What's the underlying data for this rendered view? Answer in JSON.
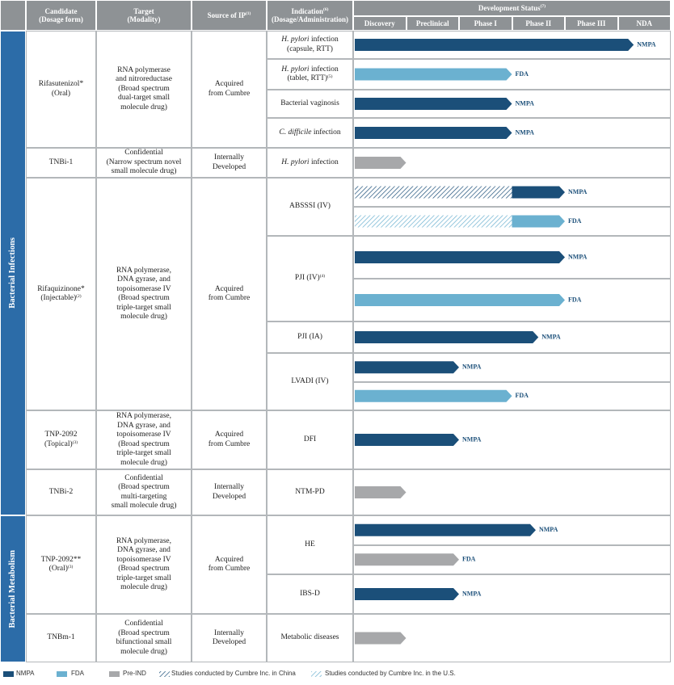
{
  "header": {
    "candidate": [
      "Candidate",
      "(Dosage form)"
    ],
    "target": [
      "Target",
      "(Modality)"
    ],
    "source": [
      {
        "text": "Source of IP",
        "sup": "(1)"
      }
    ],
    "indication": [
      {
        "text": "Indication",
        "sup": "(6)"
      },
      "(Dosage/Administration)"
    ],
    "status": [
      {
        "text": "Development Status",
        "sup": "(7)"
      }
    ],
    "phases": [
      "Discovery",
      "Preclinical",
      "Phase I",
      "Phase II",
      "Phase III",
      "NDA"
    ]
  },
  "colors": {
    "nmpa": "#1b4f79",
    "fda": "#6bb1d0",
    "preind": "#a7a8aa"
  },
  "areas": [
    "Bacterial Infections",
    "Bacterial Metabolism"
  ],
  "candidates": [
    {
      "name": [
        "Rifasutenizol*",
        "(Oral)"
      ],
      "target": [
        "RNA polymerase",
        "and nitroreductase",
        "(Broad spectrum",
        "dual-target small",
        "molecule drug)"
      ],
      "source": [
        "Acquired",
        "from Cumbre"
      ],
      "indications": [
        {
          "label": [
            {
              "italic": "H. pylori",
              "text": " infection"
            },
            "(capsule, RTT)"
          ],
          "bars": [
            {
              "kind": "nmpa",
              "label": "NMPA",
              "end": 5.3
            }
          ]
        },
        {
          "label": [
            {
              "italic": "H. pylori",
              "text": " infection"
            },
            {
              "text": "(tablet, RTT)",
              "sup": "(5)"
            }
          ],
          "bars": [
            {
              "kind": "fda",
              "label": "FDA",
              "end": 3
            }
          ]
        },
        {
          "label": [
            "Bacterial vaginosis"
          ],
          "bars": [
            {
              "kind": "nmpa",
              "label": "NMPA",
              "end": 3
            }
          ]
        },
        {
          "label": [
            {
              "italic": "C. difficile",
              "text": " infection"
            }
          ],
          "bars": [
            {
              "kind": "nmpa",
              "label": "NMPA",
              "end": 3
            }
          ]
        }
      ]
    },
    {
      "name": [
        "TNBi-1"
      ],
      "target": [
        "Confidential",
        "(Narrow spectrum novel",
        "small molecule drug)"
      ],
      "source": [
        "Internally",
        "Developed"
      ],
      "indications": [
        {
          "label": [
            {
              "italic": "H. pylori",
              "text": " infection"
            }
          ],
          "bars": [
            {
              "kind": "preind",
              "end": 1
            }
          ]
        }
      ]
    },
    {
      "name": [
        "Rifaquizinone*",
        {
          "text": "(Injectable)",
          "sup": "(2)"
        }
      ],
      "target": [
        "RNA polymerase,",
        "DNA gyrase, and",
        "topoisomerase IV",
        "(Broad spectrum",
        "triple-target small",
        "molecule drug)"
      ],
      "source": [
        "Acquired",
        "from Cumbre"
      ],
      "indications": [
        {
          "label": [
            "ABSSSI (IV)"
          ],
          "bars": [
            {
              "kind": "nmpa",
              "label": "NMPA",
              "end": 4,
              "hatch_end": 3
            },
            {
              "kind": "fda",
              "label": "FDA",
              "end": 4,
              "hatch_end": 3
            }
          ]
        },
        {
          "label": [
            {
              "text": "PJI (IV)",
              "sup": "(4)"
            }
          ],
          "bars": [
            {
              "kind": "nmpa",
              "label": "NMPA",
              "end": 4
            },
            {
              "kind": "fda",
              "label": "FDA",
              "end": 4
            }
          ]
        },
        {
          "label": [
            "PJI (IA)"
          ],
          "bars": [
            {
              "kind": "nmpa",
              "label": "NMPA",
              "end": 3.5
            }
          ]
        },
        {
          "label": [
            "LVADI (IV)"
          ],
          "bars": [
            {
              "kind": "nmpa",
              "label": "NMPA",
              "end": 2
            },
            {
              "kind": "fda",
              "label": "FDA",
              "end": 3
            }
          ]
        }
      ]
    },
    {
      "name": [
        "TNP-2092",
        {
          "text": "(Topical)",
          "sup": "(3)"
        }
      ],
      "target": [
        "RNA polymerase,",
        "DNA gyrase, and",
        "topoisomerase IV",
        "(Broad spectrum",
        "triple-target small",
        "molecule drug)"
      ],
      "source": [
        "Acquired",
        "from Cumbre"
      ],
      "indications": [
        {
          "label": [
            "DFI"
          ],
          "bars": [
            {
              "kind": "nmpa",
              "label": "NMPA",
              "end": 2
            }
          ]
        }
      ]
    },
    {
      "name": [
        "TNBi-2"
      ],
      "target": [
        "Confidential",
        "(Broad spectrum",
        "multi-targeting",
        "small molecule drug)"
      ],
      "source": [
        "Internally",
        "Developed"
      ],
      "indications": [
        {
          "label": [
            "NTM-PD"
          ],
          "bars": [
            {
              "kind": "preind",
              "end": 1
            }
          ]
        }
      ]
    },
    {
      "name": [
        "TNP-2092**",
        {
          "text": "(Oral)",
          "sup": "(3)"
        }
      ],
      "target": [
        "RNA polymerase,",
        "DNA gyrase, and",
        "topoisomerase IV",
        "(Broad spectrum",
        "triple-target small",
        "molecule drug)"
      ],
      "source": [
        "Acquired",
        "from Cumbre"
      ],
      "indications": [
        {
          "label": [
            "HE"
          ],
          "bars": [
            {
              "kind": "nmpa",
              "label": "NMPA",
              "end": 3.45
            },
            {
              "kind": "preind",
              "label": "FDA",
              "end": 2
            }
          ]
        },
        {
          "label": [
            "IBS-D"
          ],
          "bars": [
            {
              "kind": "nmpa",
              "label": "NMPA",
              "end": 2
            }
          ]
        }
      ]
    },
    {
      "name": [
        "TNBm-1"
      ],
      "target": [
        "Confidential",
        "(Broad spectrum",
        "bifunctional small",
        "molecule drug)"
      ],
      "source": [
        "Internally",
        "Developed"
      ],
      "indications": [
        {
          "label": [
            "Metabolic diseases"
          ],
          "bars": [
            {
              "kind": "preind",
              "end": 1
            }
          ]
        }
      ]
    }
  ],
  "legend": [
    {
      "kind": "nmpa",
      "label": "NMPA"
    },
    {
      "kind": "fda",
      "label": "FDA"
    },
    {
      "kind": "preind",
      "label": "Pre-IND"
    },
    {
      "kind": "hatch-cn",
      "label": "Studies conducted by Cumbre Inc. in China"
    },
    {
      "kind": "hatch-us",
      "label": "Studies conducted by Cumbre Inc. in the U.S."
    }
  ]
}
